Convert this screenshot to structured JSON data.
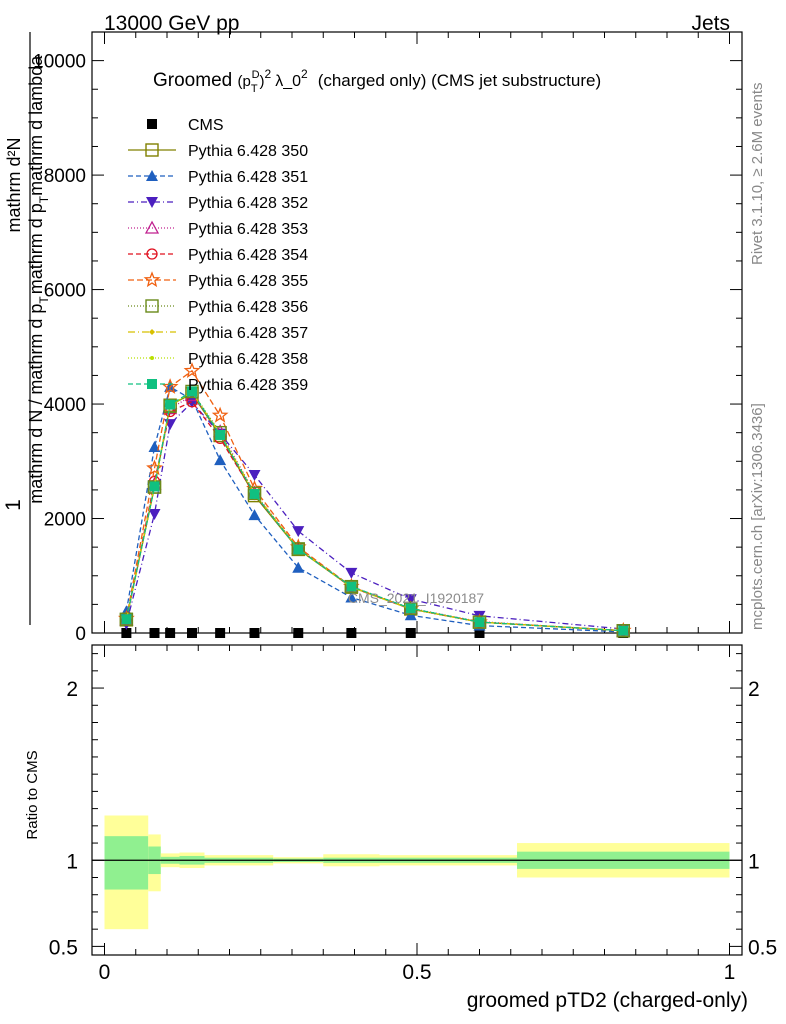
{
  "header": {
    "left": "13000 GeV pp",
    "right": "Jets"
  },
  "side_labels": {
    "rivet": "Rivet 3.1.10, ≥ 2.6M events",
    "mcplots": "mcplots.cern.ch [arXiv:1306.3436]"
  },
  "watermark": "CMS_2021_I1920187",
  "title": {
    "prefix": "Groomed",
    "base": "(p",
    "sub_t": "T",
    "sup_d": "D",
    "close": ")",
    "exp2": "2",
    "lam": "λ_0",
    "exp2b": "2",
    "suffix": "(charged only) (CMS jet substructure)"
  },
  "chart_data": [
    {
      "type": "line",
      "panel": "main",
      "ylabel_top": "mathrm d²N",
      "ylabel_mid": "mathrm d p",
      "ylabel_mid_sub": "T",
      "ylabel_mid2": "mathrm d lambda",
      "ylabel_num": "1",
      "ylabel_den": "mathrm d N / mathrm d p",
      "ylabel_den_sub": "T",
      "ylim": [
        0,
        10500
      ],
      "xlim": [
        -0.02,
        1.02
      ],
      "y_ticks": [
        0,
        2000,
        4000,
        6000,
        8000,
        10000
      ],
      "y_tick_labels": [
        "0",
        "2000",
        "4000",
        "6000",
        "8000",
        "10000"
      ],
      "x": [
        0.035,
        0.08,
        0.105,
        0.14,
        0.185,
        0.24,
        0.31,
        0.395,
        0.49,
        0.6,
        0.83
      ],
      "series": [
        {
          "name": "CMS",
          "color": "#000000",
          "marker": "square-filled",
          "dash": "none",
          "values": [
            0,
            0,
            0,
            0,
            0,
            0,
            0,
            0,
            0,
            0,
            0
          ]
        },
        {
          "name": "Pythia 6.428 350",
          "color": "#808000",
          "marker": "square-open",
          "dash": "none",
          "values": [
            230,
            2550,
            3980,
            4180,
            3450,
            2400,
            1460,
            800,
            420,
            190,
            40
          ]
        },
        {
          "name": "Pythia 6.428 351",
          "color": "#1f5fbf",
          "marker": "triangle-up-filled",
          "dash": "5,3",
          "values": [
            380,
            3250,
            4300,
            4080,
            3020,
            2060,
            1140,
            620,
            310,
            130,
            20
          ]
        },
        {
          "name": "Pythia 6.428 352",
          "color": "#4b1fbf",
          "marker": "triangle-down-filled",
          "dash": "6,3,1,3",
          "values": [
            160,
            2080,
            3650,
            4030,
            3480,
            2760,
            1780,
            1050,
            590,
            300,
            70
          ]
        },
        {
          "name": "Pythia 6.428 353",
          "color": "#c0208f",
          "marker": "triangle-up-open",
          "dash": "1,2",
          "values": [
            230,
            2600,
            3920,
            4150,
            3520,
            2450,
            1480,
            810,
            430,
            200,
            40
          ]
        },
        {
          "name": "Pythia 6.428 354",
          "color": "#e0101f",
          "marker": "circle-open",
          "dash": "5,3",
          "values": [
            220,
            2650,
            3870,
            4040,
            3400,
            2420,
            1470,
            800,
            420,
            190,
            40
          ]
        },
        {
          "name": "Pythia 6.428 355",
          "color": "#f06010",
          "marker": "star-open",
          "dash": "6,3",
          "values": [
            250,
            2880,
            4300,
            4580,
            3800,
            2520,
            1500,
            810,
            420,
            190,
            40
          ]
        },
        {
          "name": "Pythia 6.428 356",
          "color": "#6a8a1a",
          "marker": "square-open",
          "dash": "1,2",
          "values": [
            240,
            2550,
            3960,
            4220,
            3500,
            2440,
            1470,
            810,
            430,
            190,
            40
          ]
        },
        {
          "name": "Pythia 6.428 357",
          "color": "#d8c000",
          "marker": "diamond-small",
          "dash": "7,3,1,3",
          "values": [
            230,
            2580,
            3980,
            4200,
            3480,
            2440,
            1470,
            800,
            420,
            190,
            40
          ]
        },
        {
          "name": "Pythia 6.428 358",
          "color": "#b8e000",
          "marker": "dot",
          "dash": "1,2",
          "values": [
            240,
            2580,
            3970,
            4210,
            3480,
            2430,
            1470,
            800,
            420,
            190,
            40
          ]
        },
        {
          "name": "Pythia 6.428 359",
          "color": "#10c080",
          "marker": "square-filled",
          "dash": "5,3",
          "values": [
            240,
            2560,
            3990,
            4220,
            3460,
            2430,
            1460,
            810,
            430,
            190,
            40
          ]
        }
      ]
    },
    {
      "type": "area",
      "panel": "ratio",
      "ylabel": "Ratio to CMS",
      "ylim": [
        0.45,
        2.25
      ],
      "y_ticks": [
        0.5,
        1,
        2
      ],
      "y_tick_labels": [
        "0.5",
        "1",
        "2"
      ],
      "xlabel": "groomed pTD2 (charged-only)",
      "x_ticks": [
        0,
        0.5,
        1
      ],
      "x_tick_labels": [
        "0",
        "0.5",
        "1"
      ],
      "reference": 1,
      "bins": [
        {
          "lo": 0.0,
          "hi": 0.07,
          "inner": [
            0.83,
            1.14
          ],
          "outer": [
            0.6,
            1.26
          ]
        },
        {
          "lo": 0.07,
          "hi": 0.09,
          "inner": [
            0.92,
            1.08
          ],
          "outer": [
            0.82,
            1.15
          ]
        },
        {
          "lo": 0.09,
          "hi": 0.12,
          "inner": [
            0.98,
            1.02
          ],
          "outer": [
            0.96,
            1.04
          ]
        },
        {
          "lo": 0.12,
          "hi": 0.16,
          "inner": [
            0.975,
            1.025
          ],
          "outer": [
            0.955,
            1.045
          ]
        },
        {
          "lo": 0.16,
          "hi": 0.27,
          "inner": [
            0.985,
            1.015
          ],
          "outer": [
            0.97,
            1.03
          ]
        },
        {
          "lo": 0.27,
          "hi": 0.35,
          "inner": [
            0.99,
            1.01
          ],
          "outer": [
            0.982,
            1.018
          ]
        },
        {
          "lo": 0.35,
          "hi": 0.44,
          "inner": [
            0.985,
            1.015
          ],
          "outer": [
            0.965,
            1.035
          ]
        },
        {
          "lo": 0.44,
          "hi": 0.66,
          "inner": [
            0.985,
            1.015
          ],
          "outer": [
            0.97,
            1.03
          ]
        },
        {
          "lo": 0.66,
          "hi": 1.0,
          "inner": [
            0.95,
            1.05
          ],
          "outer": [
            0.9,
            1.1
          ]
        }
      ]
    }
  ],
  "colors": {
    "band_inner": "#90f090",
    "band_outer": "#ffff99",
    "axis": "#000000",
    "side_text": "#888888"
  }
}
